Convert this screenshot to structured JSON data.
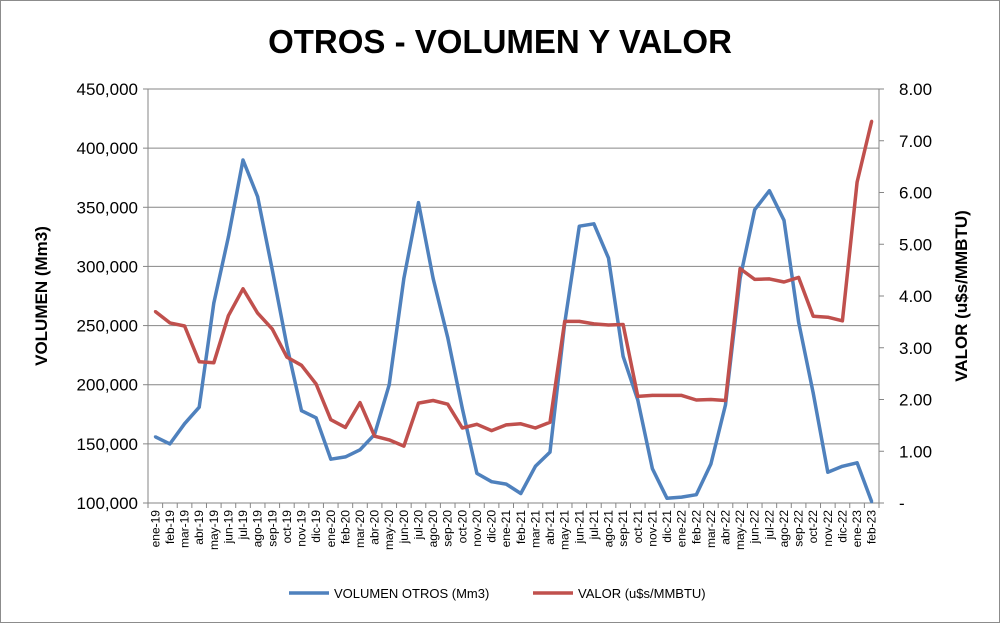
{
  "chart_data": {
    "type": "line",
    "title": "OTROS - VOLUMEN Y VALOR",
    "ylabel_left": "VOLUMEN (Mm3)",
    "ylabel_right": "VALOR (u$s/MMBTU)",
    "ylim_left": [
      100000,
      450000
    ],
    "ylim_right": [
      0,
      8
    ],
    "yticks_left": [
      "100,000",
      "150,000",
      "200,000",
      "250,000",
      "300,000",
      "350,000",
      "400,000",
      "450,000"
    ],
    "yticks_right": [
      "-",
      "1.00",
      "2.00",
      "3.00",
      "4.00",
      "5.00",
      "6.00",
      "7.00",
      "8.00"
    ],
    "grid": "horizontal",
    "legend_position": "bottom",
    "categories": [
      "ene-19",
      "feb-19",
      "mar-19",
      "abr-19",
      "may-19",
      "jun-19",
      "jul-19",
      "ago-19",
      "sep-19",
      "oct-19",
      "nov-19",
      "dic-19",
      "ene-20",
      "feb-20",
      "mar-20",
      "abr-20",
      "may-20",
      "jun-20",
      "jul-20",
      "ago-20",
      "sep-20",
      "oct-20",
      "nov-20",
      "dic-20",
      "ene-21",
      "feb-21",
      "mar-21",
      "abr-21",
      "may-21",
      "jun-21",
      "jul-21",
      "ago-21",
      "sep-21",
      "oct-21",
      "nov-21",
      "dic-21",
      "ene-22",
      "feb-22",
      "mar-22",
      "abr-22",
      "may-22",
      "jun-22",
      "jul-22",
      "ago-22",
      "sep-22",
      "oct-22",
      "nov-22",
      "dic-22",
      "ene-23",
      "feb-23"
    ],
    "series": [
      {
        "name": "VOLUMEN OTROS (Mm3)",
        "axis": "left",
        "color": "#4f81bd",
        "values": [
          156000,
          150000,
          167000,
          181000,
          269000,
          325000,
          390000,
          359000,
          297000,
          233000,
          178000,
          172000,
          137000,
          139000,
          145000,
          158000,
          200000,
          290000,
          354000,
          290000,
          240000,
          180000,
          125000,
          118000,
          116000,
          108000,
          131000,
          143000,
          252000,
          334000,
          336000,
          307000,
          224000,
          187000,
          129000,
          104000,
          105000,
          107000,
          133000,
          183000,
          290000,
          348000,
          364000,
          339000,
          253000,
          193000,
          126000,
          131000,
          134000,
          101000
        ]
      },
      {
        "name": "VALOR (u$s/MMBTU)",
        "axis": "right",
        "color": "#c0504d",
        "values": [
          3.7,
          3.48,
          3.42,
          2.73,
          2.71,
          3.62,
          4.14,
          3.67,
          3.36,
          2.82,
          2.66,
          2.3,
          1.61,
          1.46,
          1.94,
          1.29,
          1.22,
          1.1,
          1.93,
          1.98,
          1.91,
          1.45,
          1.52,
          1.4,
          1.51,
          1.53,
          1.45,
          1.56,
          3.51,
          3.51,
          3.46,
          3.44,
          3.45,
          2.06,
          2.08,
          2.08,
          2.08,
          1.99,
          2.0,
          1.98,
          4.53,
          4.32,
          4.33,
          4.27,
          4.36,
          3.61,
          3.59,
          3.52,
          6.2,
          7.38
        ]
      }
    ]
  }
}
